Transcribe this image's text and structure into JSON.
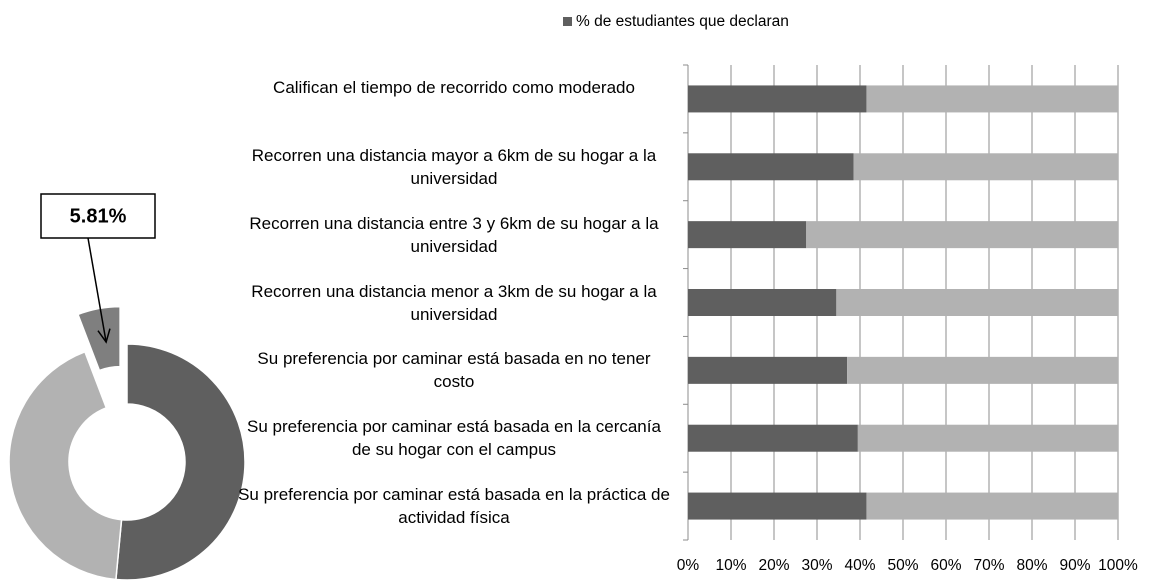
{
  "chart_data": [
    {
      "type": "pie",
      "values": [
        51.5,
        42.69,
        5.81
      ],
      "value_labels": [
        null,
        null,
        "5.81%"
      ],
      "colors": [
        "#5f5f5f",
        "#b2b2b2",
        "#7f7f7f"
      ]
    },
    {
      "type": "stacked_barh",
      "categories": [
        "Califican el tiempo de recorrido como moderado",
        "Recorren una distancia mayor a 6km de su hogar a la universidad",
        "Recorren una distancia entre 3 y 6km de su hogar a la universidad",
        "Recorren una distancia menor a 3km de su hogar a la universidad",
        "Su preferencia por caminar está basada en no tener costo",
        "Su preferencia por caminar está basada en la cercanía de su hogar con el campus",
        "Su preferencia por caminar está basada en la práctica de actividad física"
      ],
      "series": [
        {
          "name": "% de estudiantes que declaran",
          "color": "#5f5f5f",
          "values": [
            41.5,
            38.5,
            27.5,
            34.5,
            37,
            39.5,
            41.5
          ]
        },
        {
          "color": "#b2b2b2",
          "values": [
            58.5,
            61.5,
            72.5,
            65.5,
            63,
            60.5,
            58.5
          ]
        }
      ],
      "xlim": [
        0,
        100
      ],
      "xticks": [
        {
          "value": 0,
          "label": "0%"
        },
        {
          "value": 10,
          "label": "10%"
        },
        {
          "value": 20,
          "label": "20%"
        },
        {
          "value": 30,
          "label": "30%"
        },
        {
          "value": 40,
          "label": "40%"
        },
        {
          "value": 50,
          "label": "50%"
        },
        {
          "value": 60,
          "label": "60%"
        },
        {
          "value": 70,
          "label": "70%"
        },
        {
          "value": 80,
          "label": "80%"
        },
        {
          "value": 90,
          "label": "90%"
        },
        {
          "value": 100,
          "label": "100%"
        }
      ],
      "grid": true,
      "legend": "top"
    }
  ]
}
